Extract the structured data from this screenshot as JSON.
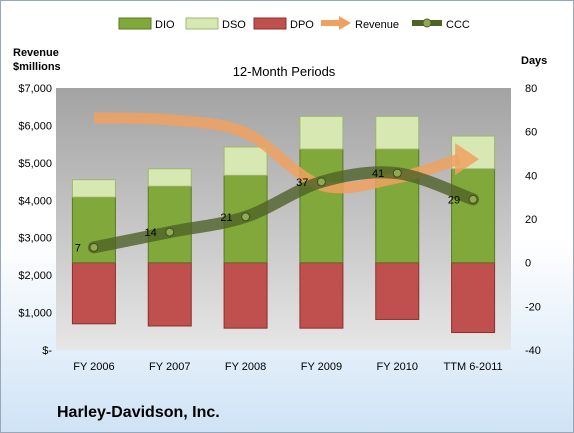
{
  "chart_data": {
    "type": "bar",
    "title": "12-Month Periods",
    "categories": [
      "FY 2006",
      "FY 2007",
      "FY 2008",
      "FY 2009",
      "FY 2010",
      "TTM 6-2011"
    ],
    "left_axis": {
      "label_line1": "Revenue",
      "label_line2": "$millions",
      "ticks": [
        "$7,000",
        "$6,000",
        "$5,000",
        "$4,000",
        "$3,000",
        "$2,000",
        "$1,000",
        "$-"
      ],
      "ylim": [
        0,
        7000
      ]
    },
    "right_axis": {
      "label": "Days",
      "ticks": [
        "80",
        "60",
        "40",
        "20",
        "0",
        "-20",
        "-40"
      ],
      "ylim": [
        -40,
        80
      ]
    },
    "series": [
      {
        "name": "DIO",
        "kind": "stacked-bar",
        "axis": "right",
        "color": "#80a83a",
        "values": [
          30,
          35,
          40,
          52,
          52,
          43
        ]
      },
      {
        "name": "DSO",
        "kind": "stacked-bar",
        "axis": "right",
        "color": "#d7e8b3",
        "values": [
          8,
          8,
          13,
          15,
          15,
          15
        ]
      },
      {
        "name": "DPO",
        "kind": "stacked-bar-negative",
        "axis": "right",
        "color": "#c0504d",
        "values": [
          -28,
          -29,
          -30,
          -30,
          -26,
          -32
        ]
      },
      {
        "name": "Revenue",
        "kind": "line-arrow",
        "axis": "left",
        "color": "#f0a160",
        "values": [
          6200,
          6150,
          5800,
          4400,
          4600,
          5100
        ]
      },
      {
        "name": "CCC",
        "kind": "line-markers",
        "axis": "right",
        "color": "#4f6228",
        "values": [
          7,
          14,
          21,
          37,
          41,
          29
        ],
        "labels": [
          "7",
          "14",
          "21",
          "37",
          "41",
          "29"
        ]
      }
    ],
    "legend_position": "top",
    "grid": false
  },
  "footer": {
    "company": "Harley-Davidson, Inc."
  }
}
